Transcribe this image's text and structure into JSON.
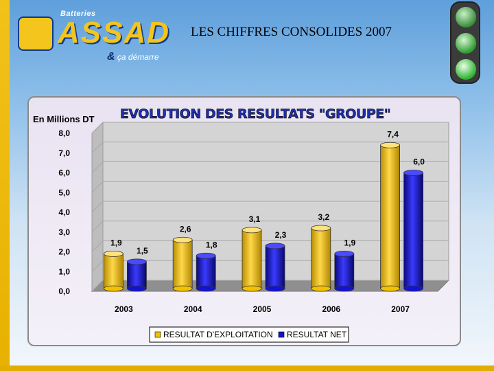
{
  "header": {
    "logo_small": "Batteries",
    "logo_name": "ASSAD",
    "logo_amp": "&",
    "logo_slogan": "ça démarre",
    "slide_title": "LES CHIFFRES CONSOLIDES 2007"
  },
  "colors": {
    "series_1": "#f2c200",
    "series_2": "#1414d0",
    "accent_yellow": "#f4c51c",
    "chart_title": "#1e2fb0"
  },
  "icons": {
    "logo": "assad-logo-icon",
    "traffic_light": "traffic-light-icon"
  },
  "chart_data": {
    "type": "bar",
    "bar_style": "3d-cylinder",
    "title": "EVOLUTION DES RESULTATS \"GROUPE\"",
    "unit_label": "En Millions DT",
    "categories": [
      "2003",
      "2004",
      "2005",
      "2006",
      "2007"
    ],
    "series": [
      {
        "name": "RESULTAT D'EXPLOITATION",
        "values": [
          1.9,
          2.6,
          3.1,
          3.2,
          7.4
        ],
        "labels": [
          "1,9",
          "2,6",
          "3,1",
          "3,2",
          "7,4"
        ]
      },
      {
        "name": "RESULTAT NET",
        "values": [
          1.5,
          1.8,
          2.3,
          1.9,
          6.0
        ],
        "labels": [
          "1,5",
          "1,8",
          "2,3",
          "1,9",
          "6,0"
        ]
      }
    ],
    "ylim": [
      0,
      8
    ],
    "yticks": [
      0,
      1,
      2,
      3,
      4,
      5,
      6,
      7,
      8
    ],
    "ytick_labels": [
      "0,0",
      "1,0",
      "2,0",
      "3,0",
      "4,0",
      "5,0",
      "6,0",
      "7,0",
      "8,0"
    ],
    "grid": true,
    "legend": "bottom"
  }
}
